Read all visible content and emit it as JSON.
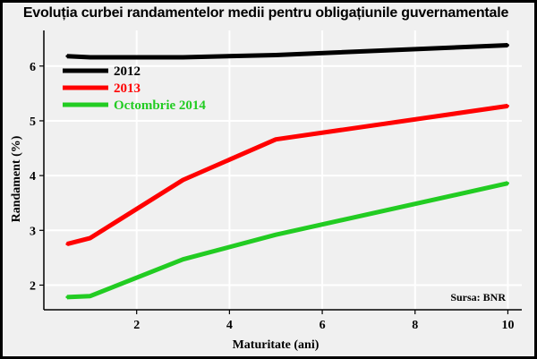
{
  "chart_data": {
    "type": "line",
    "title": "Evoluția curbei randamentelor medii pentru obligațiunile guvernamentale",
    "xlabel": "Maturitate (ani)",
    "ylabel": "Randament (%)",
    "xlim": [
      0,
      10.3
    ],
    "ylim": [
      1.55,
      6.65
    ],
    "xticks": [
      2,
      4,
      6,
      8,
      10
    ],
    "yticks": [
      2,
      3,
      4,
      5,
      6
    ],
    "grid": true,
    "legend": "top-left",
    "source": "Sursa: BNR",
    "series": [
      {
        "name": "2012",
        "color": "#000000",
        "x": [
          0.5,
          1,
          3,
          5,
          10
        ],
        "y": [
          6.18,
          6.16,
          6.16,
          6.2,
          6.38
        ]
      },
      {
        "name": "2013",
        "color": "#ff0000",
        "x": [
          0.5,
          1,
          3,
          5,
          10
        ],
        "y": [
          2.75,
          2.86,
          3.92,
          4.66,
          5.27
        ]
      },
      {
        "name": "Octombrie 2014",
        "color": "#22cc22",
        "x": [
          0.5,
          1,
          3,
          5,
          10
        ],
        "y": [
          1.78,
          1.8,
          2.47,
          2.92,
          3.86
        ]
      }
    ]
  }
}
